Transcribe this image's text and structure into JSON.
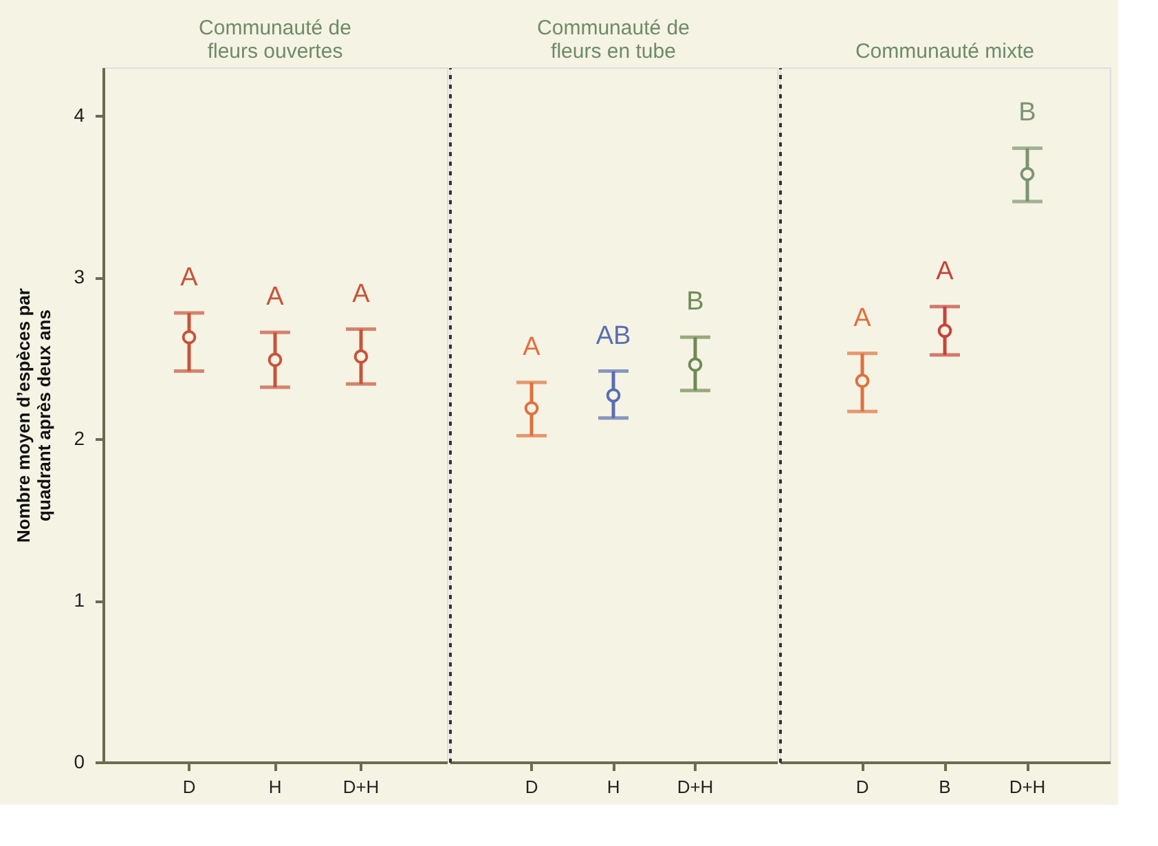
{
  "chart_data": [
    {
      "type": "scatter",
      "title": "Communauté de fleurs ouvertes",
      "ylabel": "Nombre moyen d’espèces par quadrant après deux ans",
      "categories": [
        "D",
        "H",
        "D+H"
      ],
      "values": [
        2.63,
        2.49,
        2.51
      ],
      "errors": [
        [
          2.42,
          2.78
        ],
        [
          2.32,
          2.66
        ],
        [
          2.34,
          2.68
        ]
      ],
      "colors": [
        "#c8533a",
        "#c8533a",
        "#c8533a"
      ],
      "marker": "circle",
      "ylim": [
        0,
        4.3
      ],
      "yticks": [
        0,
        1,
        2,
        3,
        4
      ],
      "grid": false,
      "annotations": [
        {
          "text": "A",
          "x": "D",
          "y": 2.78
        },
        {
          "text": "A",
          "x": "H",
          "y": 2.66
        },
        {
          "text": "A",
          "x": "D+H",
          "y": 2.68
        }
      ]
    },
    {
      "type": "scatter",
      "title": "Communauté de fleurs en tube",
      "categories": [
        "D",
        "H",
        "D+H"
      ],
      "values": [
        2.19,
        2.27,
        2.46
      ],
      "errors": [
        [
          2.02,
          2.35
        ],
        [
          2.13,
          2.42
        ],
        [
          2.3,
          2.63
        ]
      ],
      "colors": [
        "#e0703f",
        "#5a6fb0",
        "#6f8a55"
      ],
      "marker": "circle",
      "ylim": [
        0,
        4.3
      ],
      "yticks": [
        0,
        1,
        2,
        3,
        4
      ],
      "grid": false,
      "tick_labels": "x",
      "annotations": [
        {
          "text": "A",
          "x": "D",
          "y": 2.35
        },
        {
          "text": "AB",
          "x": "H",
          "y": 2.42
        },
        {
          "text": "B",
          "x": "D+H",
          "y": 2.63
        }
      ]
    },
    {
      "type": "scatter",
      "title": "Communauté mixte",
      "categories": [
        "D",
        "B",
        "D+H"
      ],
      "values": [
        2.36,
        2.67,
        3.64
      ],
      "errors": [
        [
          2.17,
          2.53
        ],
        [
          2.52,
          2.82
        ],
        [
          3.47,
          3.8
        ]
      ],
      "colors": [
        "#e0703f",
        "#c8433a",
        "#7d9470"
      ],
      "marker": "circle",
      "ylim": [
        0,
        4.3
      ],
      "yticks": [
        0,
        1,
        2,
        3,
        4
      ],
      "grid": false,
      "tick_labels": "x",
      "annotations": [
        {
          "text": "A",
          "x": "D",
          "y": 2.53
        },
        {
          "text": "A",
          "x": "B",
          "y": 2.82
        },
        {
          "text": "B",
          "x": "D+H",
          "y": 3.8
        }
      ]
    }
  ]
}
